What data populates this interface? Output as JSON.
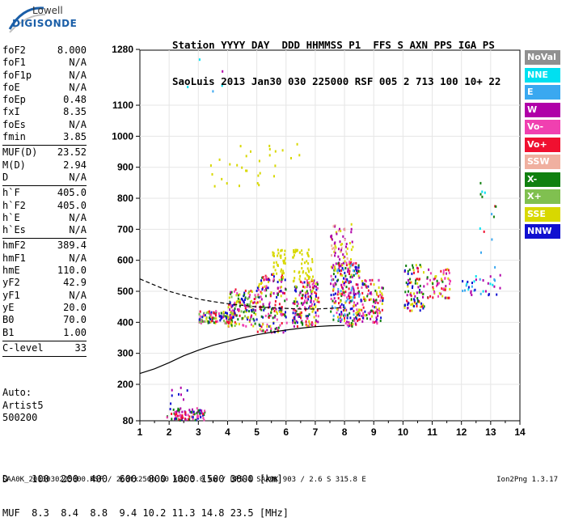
{
  "logo": {
    "line1": "Lowell",
    "line2": "DIGISONDE"
  },
  "header": {
    "line1": "Station YYYY DAY  DDD HHMMSS P1  FFS S AXN PPS IGA PS",
    "line2": "SaoLuis 2013 Jan30 030 225000 RSF 005 2 713 100 10+ 22"
  },
  "params": {
    "group1": [
      [
        "foF2",
        "8.000"
      ],
      [
        "foF1",
        "N/A"
      ],
      [
        "foF1p",
        "N/A"
      ],
      [
        "foE",
        "N/A"
      ],
      [
        "foEp",
        "0.48"
      ],
      [
        "fxI",
        "8.35"
      ],
      [
        "foEs",
        "N/A"
      ],
      [
        "fmin",
        "3.85"
      ]
    ],
    "group2": [
      [
        "MUF(D)",
        "23.52"
      ],
      [
        "M(D)",
        "2.94"
      ],
      [
        "D",
        "N/A"
      ]
    ],
    "group3": [
      [
        "h`F",
        "405.0"
      ],
      [
        "h`F2",
        "405.0"
      ],
      [
        "h`E",
        "N/A"
      ],
      [
        "h`Es",
        "N/A"
      ]
    ],
    "group4": [
      [
        "hmF2",
        "389.4"
      ],
      [
        "hmF1",
        "N/A"
      ],
      [
        "hmE",
        "110.0"
      ],
      [
        "yF2",
        "42.9"
      ],
      [
        "yF1",
        "N/A"
      ],
      [
        "yE",
        "20.0"
      ],
      [
        "B0",
        "70.0"
      ],
      [
        "B1",
        "1.00"
      ]
    ],
    "group5": [
      [
        "C-level",
        "33"
      ]
    ]
  },
  "auto": {
    "line1": "Auto:",
    "line2": "Artist5",
    "line3": "500200"
  },
  "footer": {
    "d_row": "D    100  200  400  600  800 1000 1500 3000 [km]",
    "muf_row": "MUF  8.3  8.4  8.8  9.4 10.2 11.3 14.8 23.5 [MHz]",
    "source": "SAA0K_2013030225000.RSF / 260fx256h 50 kHz 5.0 km / DPS-4 SAA0K 903 / 2.6 S 315.8 E",
    "version": "Ion2Png 1.3.17"
  },
  "legend": [
    {
      "label": "NoVal",
      "color": "#909090"
    },
    {
      "label": "NNE",
      "color": "#00e0f0"
    },
    {
      "label": "E",
      "color": "#3aa8f0"
    },
    {
      "label": "W",
      "color": "#b000a8"
    },
    {
      "label": "Vo-",
      "color": "#f040b0"
    },
    {
      "label": "Vo+",
      "color": "#f01030"
    },
    {
      "label": "SSW",
      "color": "#f0b0a0"
    },
    {
      "label": "X-",
      "color": "#108010"
    },
    {
      "label": "X+",
      "color": "#80c050"
    },
    {
      "label": "SSE",
      "color": "#d8d800"
    },
    {
      "label": "NNW",
      "color": "#1010d0"
    }
  ],
  "chart_data": {
    "type": "scatter",
    "xlabel": "",
    "ylabel": "",
    "xlim": [
      1,
      14
    ],
    "ylim": [
      80,
      1280
    ],
    "x_ticks": [
      1,
      2,
      3,
      4,
      5,
      6,
      7,
      8,
      9,
      10,
      11,
      12,
      13,
      14
    ],
    "y_ticks": [
      80,
      200,
      300,
      400,
      500,
      600,
      700,
      800,
      900,
      1000,
      1100,
      1280
    ],
    "grid": true,
    "profile_solid": [
      [
        1.0,
        235
      ],
      [
        1.5,
        250
      ],
      [
        2.0,
        270
      ],
      [
        2.5,
        292
      ],
      [
        3.0,
        310
      ],
      [
        3.5,
        326
      ],
      [
        4.0,
        338
      ],
      [
        4.5,
        350
      ],
      [
        5.0,
        360
      ],
      [
        5.5,
        368
      ],
      [
        6.0,
        375
      ],
      [
        6.5,
        381
      ],
      [
        7.0,
        386
      ],
      [
        7.5,
        389
      ],
      [
        8.0,
        390
      ]
    ],
    "profile_dashed": [
      [
        1.0,
        540
      ],
      [
        1.5,
        520
      ],
      [
        2.0,
        500
      ],
      [
        2.5,
        487
      ],
      [
        3.0,
        475
      ],
      [
        3.5,
        467
      ],
      [
        4.0,
        460
      ],
      [
        4.5,
        455
      ],
      [
        5.0,
        450
      ],
      [
        5.5,
        447
      ],
      [
        6.0,
        445
      ],
      [
        6.5,
        443
      ],
      [
        7.0,
        443
      ],
      [
        7.5,
        445
      ],
      [
        8.0,
        448
      ]
    ],
    "echo_clusters": [
      {
        "x": [
          1.9,
          3.2
        ],
        "h": [
          85,
          125
        ],
        "colors": [
          "#1010d0",
          "#b000a8",
          "#f040b0",
          "#108010",
          "#f01030"
        ],
        "n": 90
      },
      {
        "x": [
          2.0,
          2.6
        ],
        "h": [
          120,
          200
        ],
        "colors": [
          "#b000a8",
          "#1010d0"
        ],
        "n": 8
      },
      {
        "x": [
          3.0,
          4.2
        ],
        "h": [
          400,
          440
        ],
        "colors": [
          "#108010",
          "#80c050",
          "#1010d0",
          "#f01030",
          "#d8d800",
          "#f040b0"
        ],
        "n": 120
      },
      {
        "x": [
          4.0,
          5.0
        ],
        "h": [
          390,
          510
        ],
        "colors": [
          "#d8d800",
          "#108010",
          "#b000a8",
          "#f040b0",
          "#1010d0",
          "#f01030",
          "#80c050"
        ],
        "n": 140
      },
      {
        "x": [
          5.0,
          6.0
        ],
        "h": [
          370,
          560
        ],
        "colors": [
          "#d8d800",
          "#f01030",
          "#1010d0",
          "#b000a8",
          "#f040b0",
          "#108010"
        ],
        "n": 170
      },
      {
        "x": [
          5.5,
          5.95
        ],
        "h": [
          560,
          640
        ],
        "colors": [
          "#d8d800"
        ],
        "n": 35
      },
      {
        "x": [
          6.2,
          7.1
        ],
        "h": [
          390,
          540
        ],
        "colors": [
          "#f01030",
          "#b000a8",
          "#1010d0",
          "#f040b0",
          "#d8d800",
          "#108010"
        ],
        "n": 170
      },
      {
        "x": [
          6.2,
          6.9
        ],
        "h": [
          540,
          640
        ],
        "colors": [
          "#d8d800"
        ],
        "n": 50
      },
      {
        "x": [
          7.5,
          8.5
        ],
        "h": [
          390,
          600
        ],
        "colors": [
          "#b000a8",
          "#f040b0",
          "#1010d0",
          "#f01030",
          "#108010",
          "#d8d800",
          "#3aa8f0"
        ],
        "n": 260
      },
      {
        "x": [
          7.5,
          8.3
        ],
        "h": [
          600,
          720
        ],
        "colors": [
          "#d8d800",
          "#f0b0a0",
          "#b000a8"
        ],
        "n": 60
      },
      {
        "x": [
          8.5,
          9.3
        ],
        "h": [
          400,
          540
        ],
        "colors": [
          "#b000a8",
          "#f040b0",
          "#1010d0",
          "#d8d800",
          "#108010",
          "#f01030"
        ],
        "n": 110
      },
      {
        "x": [
          10.0,
          10.7
        ],
        "h": [
          440,
          590
        ],
        "colors": [
          "#108010",
          "#f01030",
          "#1010d0",
          "#b000a8",
          "#d8d800"
        ],
        "n": 90
      },
      {
        "x": [
          10.8,
          11.6
        ],
        "h": [
          480,
          580
        ],
        "colors": [
          "#f01030",
          "#b000a8",
          "#108010",
          "#d8d800",
          "#f040b0"
        ],
        "n": 60
      },
      {
        "x": [
          12.0,
          13.3
        ],
        "h": [
          490,
          560
        ],
        "colors": [
          "#3aa8f0",
          "#1010d0",
          "#00e0f0",
          "#b000a8"
        ],
        "n": 35
      },
      {
        "x": [
          12.6,
          13.2
        ],
        "h": [
          560,
          860
        ],
        "colors": [
          "#108010",
          "#3aa8f0",
          "#00e0f0",
          "#f01030"
        ],
        "n": 14
      },
      {
        "x": [
          3.4,
          6.5
        ],
        "h": [
          840,
          980
        ],
        "colors": [
          "#d8d800"
        ],
        "n": 30
      },
      {
        "x": [
          2.0,
          4.5
        ],
        "h": [
          1100,
          1260
        ],
        "colors": [
          "#3aa8f0",
          "#b000a8",
          "#00e0f0"
        ],
        "n": 5
      }
    ]
  }
}
